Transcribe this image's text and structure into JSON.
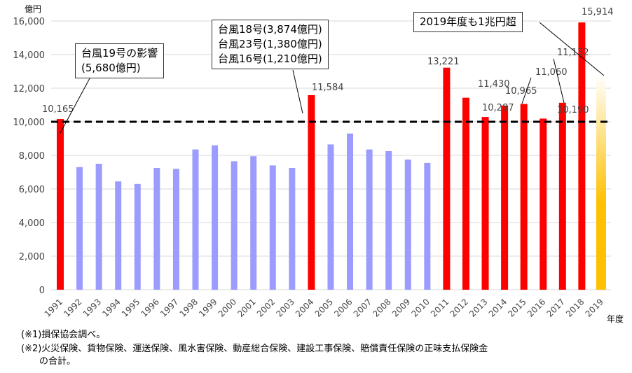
{
  "chart_data": {
    "type": "bar",
    "unit_label": "億円",
    "xlabel": "年度",
    "ylim": [
      0,
      16000
    ],
    "yticks": [
      0,
      2000,
      4000,
      6000,
      8000,
      10000,
      12000,
      14000,
      16000
    ],
    "ytick_labels": [
      "0",
      "2,000",
      "4,000",
      "6,000",
      "8,000",
      "10,000",
      "12,000",
      "14,000",
      "16,000"
    ],
    "grid": true,
    "reference_line": 10000,
    "categories": [
      "1991",
      "1992",
      "1993",
      "1994",
      "1995",
      "1996",
      "1997",
      "1998",
      "1999",
      "2000",
      "2001",
      "2002",
      "2003",
      "2004",
      "2005",
      "2006",
      "2007",
      "2008",
      "2009",
      "2010",
      "2011",
      "2012",
      "2013",
      "2014",
      "2015",
      "2016",
      "2017",
      "2018",
      "2019"
    ],
    "values": [
      10165,
      7300,
      7500,
      6450,
      6300,
      7250,
      7200,
      8350,
      8600,
      7650,
      7950,
      7400,
      7250,
      11584,
      8650,
      9300,
      8350,
      8250,
      7750,
      7550,
      13221,
      11430,
      10287,
      10965,
      11060,
      10190,
      11132,
      15914,
      12800
    ],
    "highlight": [
      true,
      false,
      false,
      false,
      false,
      false,
      false,
      false,
      false,
      false,
      false,
      false,
      false,
      true,
      false,
      false,
      false,
      false,
      false,
      false,
      true,
      true,
      true,
      true,
      true,
      true,
      true,
      true,
      "estimate"
    ],
    "data_labels": {
      "1991": "10,165",
      "2004": "11,584",
      "2011": "13,221",
      "2012": "11,430",
      "2013": "10,287",
      "2014": "10,965",
      "2015": "11,060",
      "2016": "10,190",
      "2017": "11,132",
      "2018": "15,914"
    },
    "colors": {
      "highlight": "#ff0000",
      "normal": "#9c9cff",
      "estimate_top": "#ffffff",
      "estimate_bottom": "#ffc000",
      "reference": "#000000",
      "grid": "#d9d9d9"
    },
    "annotations": [
      {
        "text": "台風19号の影響\n(5,680億円)",
        "target": "1991"
      },
      {
        "text": "台風18号(3,874億円)\n台風23号(1,380億円)\n台風16号(1,210億円)",
        "target": "2004"
      },
      {
        "text": "2019年度も1兆円超",
        "target": "2019"
      }
    ]
  },
  "notes": [
    "(※1)損保協会調べ。",
    "(※2)火災保険、貨物保険、運送保険、風水害保険、動産総合保険、建設工事保険、賠償責任保険の正味支払保険金\n　　の合計。"
  ]
}
